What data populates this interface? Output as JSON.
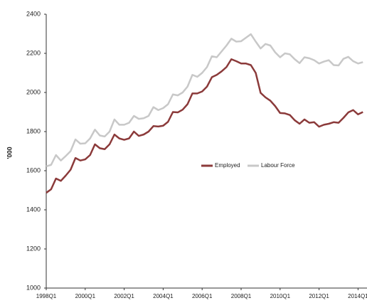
{
  "chart_data": {
    "type": "line",
    "y_label": "'000",
    "categories": [
      "1998Q1",
      null,
      null,
      null,
      null,
      null,
      null,
      null,
      "2000Q1",
      null,
      null,
      null,
      null,
      null,
      null,
      null,
      "2002Q1",
      null,
      null,
      null,
      null,
      null,
      null,
      null,
      "2004Q1",
      null,
      null,
      null,
      null,
      null,
      null,
      null,
      "2006Q1",
      null,
      null,
      null,
      null,
      null,
      null,
      null,
      "2008Q1",
      null,
      null,
      null,
      null,
      null,
      null,
      null,
      "2010Q1",
      null,
      null,
      null,
      null,
      null,
      null,
      null,
      "2012Q1",
      null,
      null,
      null,
      null,
      null,
      null,
      null,
      "2014Q1",
      null
    ],
    "series": [
      {
        "name": "Employed",
        "color": "#8b3a3a",
        "values": [
          1487,
          1505,
          1560,
          1548,
          1575,
          1605,
          1665,
          1652,
          1658,
          1680,
          1735,
          1715,
          1710,
          1735,
          1785,
          1765,
          1758,
          1765,
          1800,
          1778,
          1785,
          1800,
          1828,
          1826,
          1830,
          1850,
          1900,
          1898,
          1912,
          1940,
          1995,
          1995,
          2005,
          2030,
          2078,
          2090,
          2108,
          2130,
          2170,
          2160,
          2148,
          2148,
          2140,
          2100,
          1998,
          1975,
          1958,
          1930,
          1895,
          1893,
          1885,
          1858,
          1840,
          1862,
          1845,
          1848,
          1825,
          1835,
          1840,
          1848,
          1845,
          1870,
          1898,
          1910,
          1888,
          1900
        ]
      },
      {
        "name": "Labour Force",
        "color": "#c8c8c8",
        "values": [
          1622,
          1630,
          1680,
          1652,
          1675,
          1700,
          1760,
          1738,
          1740,
          1765,
          1810,
          1780,
          1775,
          1800,
          1862,
          1835,
          1835,
          1845,
          1880,
          1865,
          1868,
          1880,
          1925,
          1910,
          1920,
          1940,
          1990,
          1985,
          2000,
          2030,
          2090,
          2080,
          2100,
          2130,
          2185,
          2180,
          2210,
          2240,
          2275,
          2260,
          2262,
          2280,
          2298,
          2260,
          2225,
          2248,
          2240,
          2205,
          2180,
          2200,
          2195,
          2170,
          2150,
          2180,
          2175,
          2165,
          2148,
          2158,
          2165,
          2140,
          2138,
          2172,
          2182,
          2160,
          2148,
          2155
        ]
      }
    ],
    "ylim": [
      1000,
      2400
    ],
    "yticks": [
      1000,
      1200,
      1400,
      1600,
      1800,
      2000,
      2200,
      2400
    ],
    "grid": false,
    "legend": "center"
  }
}
